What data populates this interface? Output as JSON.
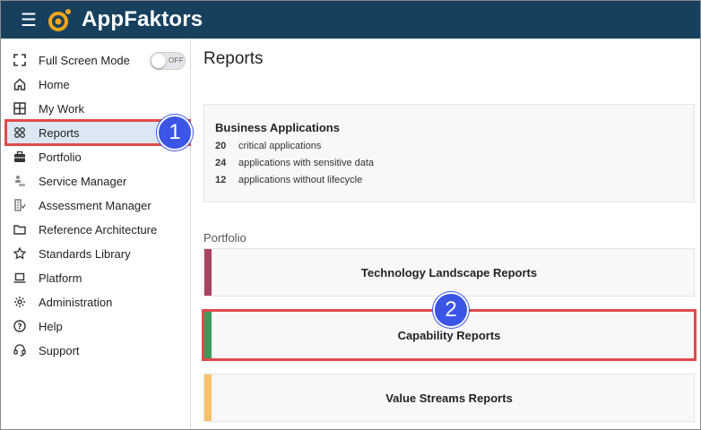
{
  "app": {
    "title": "AppFaktors"
  },
  "sidebar": {
    "items": [
      {
        "label": "Full Screen Mode",
        "icon": "fullscreen-icon"
      },
      {
        "label": "Home",
        "icon": "home-icon"
      },
      {
        "label": "My Work",
        "icon": "grid-icon"
      },
      {
        "label": "Reports",
        "icon": "reports-icon",
        "active": true
      },
      {
        "label": "Portfolio",
        "icon": "briefcase-icon"
      },
      {
        "label": "Service Manager",
        "icon": "service-manager-icon"
      },
      {
        "label": "Assessment Manager",
        "icon": "assessment-icon"
      },
      {
        "label": "Reference Architecture",
        "icon": "folder-icon"
      },
      {
        "label": "Standards Library",
        "icon": "star-icon"
      },
      {
        "label": "Platform",
        "icon": "laptop-icon"
      },
      {
        "label": "Administration",
        "icon": "gear-icon"
      },
      {
        "label": "Help",
        "icon": "help-icon"
      },
      {
        "label": "Support",
        "icon": "support-icon"
      }
    ],
    "fullscreen_toggle": "OFF"
  },
  "main": {
    "title": "Reports",
    "summary": {
      "title": "Business Applications",
      "stats": [
        {
          "value": "20",
          "label": "critical applications"
        },
        {
          "value": "24",
          "label": "applications with sensitive data"
        },
        {
          "value": "12",
          "label": "applications without lifecycle"
        }
      ]
    },
    "section_label": "Portfolio",
    "cards": [
      {
        "label": "Technology Landscape Reports",
        "accent": "#a8445f"
      },
      {
        "label": "Capability Reports",
        "accent": "#3e9a5a"
      },
      {
        "label": "Value Streams Reports",
        "accent": "#f6c36a"
      }
    ]
  },
  "callouts": [
    "1",
    "2"
  ],
  "colors": {
    "topbar": "#17405f",
    "highlight": "#e04a4a",
    "callout": "#3b55e6",
    "logo": "#f4a51c"
  }
}
